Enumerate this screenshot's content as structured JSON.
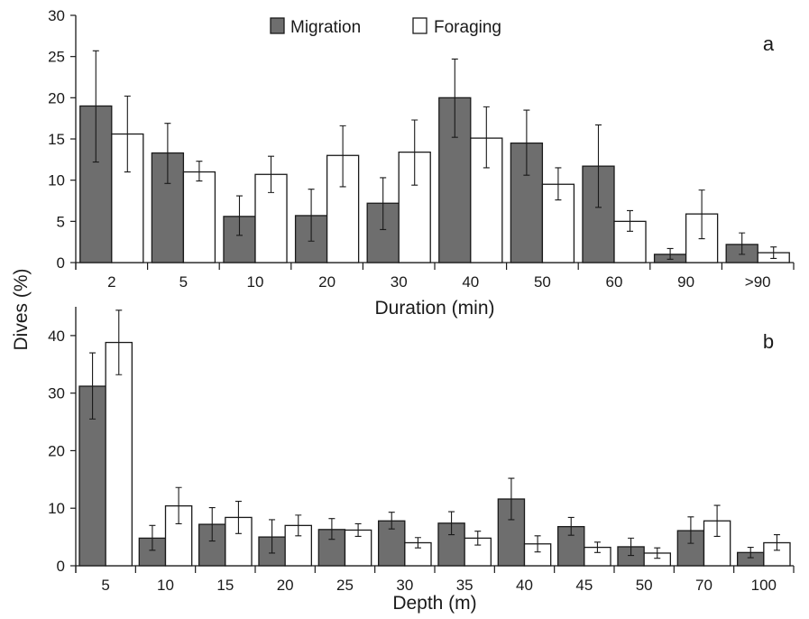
{
  "shared_ylabel": "Dives (%)",
  "legend": {
    "entries": [
      {
        "label": "Migration",
        "fill": "#6e6e6e"
      },
      {
        "label": "Foraging",
        "fill": "#ffffff"
      }
    ],
    "placement": "top-center"
  },
  "colors": {
    "migration": "#6e6e6e",
    "foraging": "#ffffff",
    "stroke": "#1a1a1a"
  },
  "chart_data": [
    {
      "type": "bar",
      "panel_label": "a",
      "xlabel": "Duration (min)",
      "ylabel": "Dives (%)",
      "ylim": [
        0,
        30
      ],
      "yticks": [
        0,
        5,
        10,
        15,
        20,
        25,
        30
      ],
      "grid": false,
      "categories": [
        "2",
        "5",
        "10",
        "20",
        "30",
        "40",
        "50",
        "60",
        "90",
        ">90"
      ],
      "series": [
        {
          "name": "Migration",
          "values": [
            19.0,
            13.3,
            5.6,
            5.7,
            7.2,
            20.0,
            14.5,
            11.7,
            1.0,
            2.2
          ],
          "error_low": [
            12.2,
            9.6,
            3.3,
            2.6,
            4.0,
            15.2,
            10.6,
            6.7,
            0.4,
            1.0
          ],
          "error_high": [
            25.7,
            16.9,
            8.1,
            8.9,
            10.3,
            24.7,
            18.5,
            16.7,
            1.7,
            3.6
          ]
        },
        {
          "name": "Foraging",
          "values": [
            15.6,
            11.0,
            10.7,
            13.0,
            13.4,
            15.1,
            9.5,
            5.0,
            5.9,
            1.2
          ],
          "error_low": [
            11.0,
            9.9,
            8.5,
            9.2,
            9.4,
            11.5,
            7.6,
            3.8,
            2.9,
            0.5
          ],
          "error_high": [
            20.2,
            12.3,
            12.9,
            16.6,
            17.3,
            18.9,
            11.5,
            6.3,
            8.8,
            1.9
          ]
        }
      ]
    },
    {
      "type": "bar",
      "panel_label": "b",
      "xlabel": "Depth (m)",
      "ylabel": "Dives (%)",
      "ylim": [
        0,
        45
      ],
      "yticks": [
        0,
        10,
        20,
        30,
        40
      ],
      "grid": false,
      "categories": [
        "5",
        "10",
        "15",
        "20",
        "25",
        "30",
        "35",
        "40",
        "45",
        "50",
        "70",
        "100"
      ],
      "series": [
        {
          "name": "Migration",
          "values": [
            31.2,
            4.8,
            7.2,
            5.0,
            6.3,
            7.8,
            7.4,
            11.6,
            6.8,
            3.3,
            6.1,
            2.3
          ],
          "error_low": [
            25.5,
            2.7,
            4.3,
            2.2,
            4.6,
            6.4,
            5.4,
            8.0,
            5.3,
            1.8,
            3.9,
            1.4
          ],
          "error_high": [
            37.0,
            7.0,
            10.1,
            8.0,
            8.2,
            9.3,
            9.4,
            15.2,
            8.4,
            4.8,
            8.5,
            3.2
          ]
        },
        {
          "name": "Foraging",
          "values": [
            38.8,
            10.4,
            8.4,
            7.0,
            6.2,
            4.0,
            4.8,
            3.8,
            3.2,
            2.2,
            7.8,
            4.0
          ],
          "error_low": [
            33.2,
            7.3,
            5.6,
            5.2,
            5.1,
            3.1,
            3.6,
            2.4,
            2.3,
            1.3,
            5.1,
            2.7
          ],
          "error_high": [
            44.4,
            13.6,
            11.2,
            8.8,
            7.3,
            4.9,
            6.0,
            5.2,
            4.1,
            3.1,
            10.5,
            5.4
          ]
        }
      ]
    }
  ]
}
